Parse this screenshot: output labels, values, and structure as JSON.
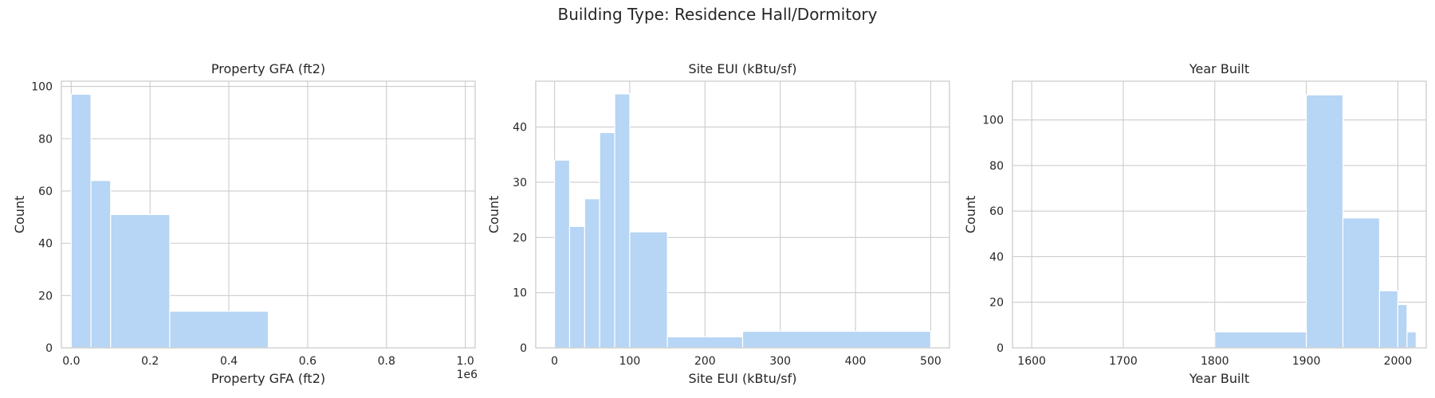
{
  "suptitle": "Building Type: Residence Hall/Dormitory",
  "colors": {
    "bar_fill": "#b7d5f4",
    "bar_stroke": "#ffffff",
    "grid": "#cccccc",
    "axis": "#cccccc",
    "text": "#262626"
  },
  "chart_data": [
    {
      "type": "bar",
      "title": "Property GFA (ft2)",
      "xlabel": "Property GFA (ft2)",
      "ylabel": "Count",
      "offset_label": "1e6",
      "grid": true,
      "xlim": [
        -0.025,
        1.025
      ],
      "ylim": [
        0,
        102
      ],
      "xticks": [
        0.0,
        0.2,
        0.4,
        0.6,
        0.8,
        1.0
      ],
      "xtick_labels": [
        "0.0",
        "0.2",
        "0.4",
        "0.6",
        "0.8",
        "1.0"
      ],
      "yticks": [
        0,
        20,
        40,
        60,
        80,
        100
      ],
      "ytick_labels": [
        "0",
        "20",
        "40",
        "60",
        "80",
        "100"
      ],
      "bins": [
        {
          "x0": 0.0,
          "x1": 0.05,
          "count": 97
        },
        {
          "x0": 0.05,
          "x1": 0.1,
          "count": 64
        },
        {
          "x0": 0.1,
          "x1": 0.25,
          "count": 51
        },
        {
          "x0": 0.25,
          "x1": 0.5,
          "count": 14
        }
      ]
    },
    {
      "type": "bar",
      "title": "Site EUI (kBtu/sf)",
      "xlabel": "Site EUI (kBtu/sf)",
      "ylabel": "Count",
      "grid": true,
      "xlim": [
        -25,
        525
      ],
      "ylim": [
        0,
        48.3
      ],
      "xticks": [
        0,
        100,
        200,
        300,
        400,
        500
      ],
      "xtick_labels": [
        "0",
        "100",
        "200",
        "300",
        "400",
        "500"
      ],
      "yticks": [
        0,
        10,
        20,
        30,
        40
      ],
      "ytick_labels": [
        "0",
        "10",
        "20",
        "30",
        "40"
      ],
      "bins": [
        {
          "x0": 0,
          "x1": 20,
          "count": 34
        },
        {
          "x0": 20,
          "x1": 40,
          "count": 22
        },
        {
          "x0": 40,
          "x1": 60,
          "count": 27
        },
        {
          "x0": 60,
          "x1": 80,
          "count": 39
        },
        {
          "x0": 80,
          "x1": 100,
          "count": 46
        },
        {
          "x0": 100,
          "x1": 150,
          "count": 21
        },
        {
          "x0": 150,
          "x1": 250,
          "count": 2
        },
        {
          "x0": 250,
          "x1": 500,
          "count": 3
        }
      ]
    },
    {
      "type": "bar",
      "title": "Year Built",
      "xlabel": "Year Built",
      "ylabel": "Count",
      "grid": true,
      "xlim": [
        1579,
        2031
      ],
      "ylim": [
        0,
        117
      ],
      "xticks": [
        1600,
        1700,
        1800,
        1900,
        2000
      ],
      "xtick_labels": [
        "1600",
        "1700",
        "1800",
        "1900",
        "2000"
      ],
      "yticks": [
        0,
        20,
        40,
        60,
        80,
        100
      ],
      "ytick_labels": [
        "0",
        "20",
        "40",
        "60",
        "80",
        "100"
      ],
      "bins": [
        {
          "x0": 1800,
          "x1": 1900,
          "count": 7
        },
        {
          "x0": 1900,
          "x1": 1940,
          "count": 111
        },
        {
          "x0": 1940,
          "x1": 1980,
          "count": 57
        },
        {
          "x0": 1980,
          "x1": 2000,
          "count": 25
        },
        {
          "x0": 2000,
          "x1": 2010,
          "count": 19
        },
        {
          "x0": 2010,
          "x1": 2020,
          "count": 7
        }
      ]
    }
  ]
}
